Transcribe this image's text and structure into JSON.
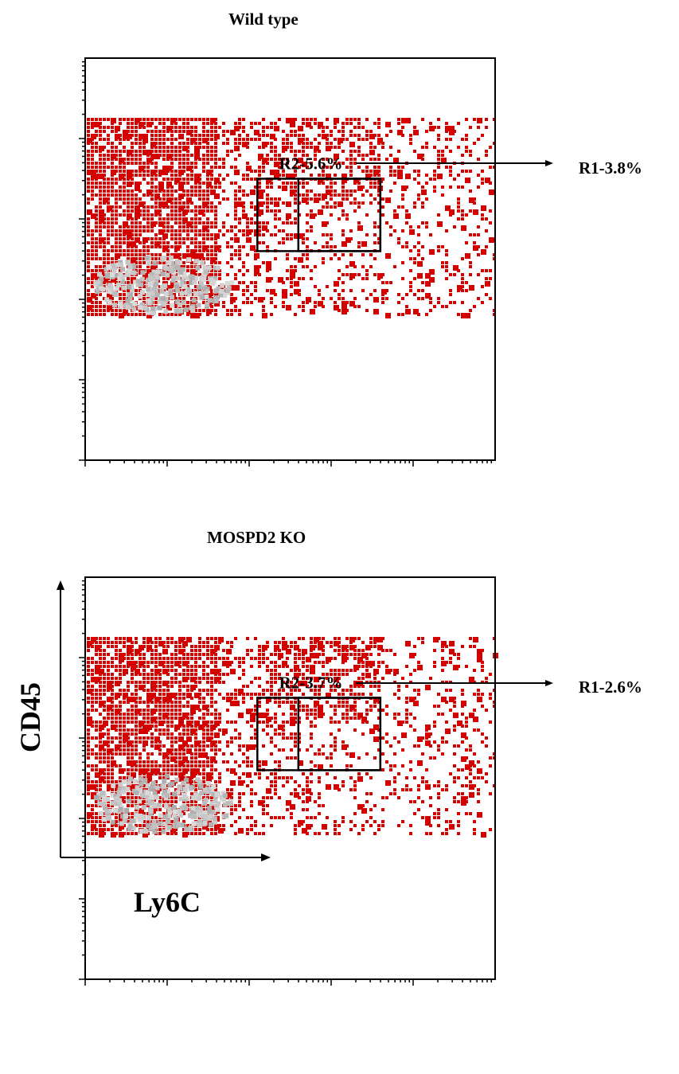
{
  "chart_data": [
    {
      "type": "scatter",
      "title": "Wild type",
      "xlabel": "Ly6C",
      "ylabel": "CD45",
      "x_scale": "log",
      "y_scale": "log",
      "x_decades": [
        0,
        5
      ],
      "y_decades": [
        0,
        5
      ],
      "grid": false,
      "gates": [
        {
          "name": "R2",
          "percent": "R2-5.6%",
          "x_decade_range": [
            2.1,
            3.6
          ],
          "y_decade_range": [
            2.6,
            3.5
          ]
        },
        {
          "name": "R1",
          "percent": "R1-3.8%",
          "x_decade_range": [
            2.6,
            3.6
          ],
          "y_decade_range": [
            2.6,
            3.5
          ]
        }
      ]
    },
    {
      "type": "scatter",
      "title": "MOSPD2 KO",
      "xlabel": "Ly6C",
      "ylabel": "CD45",
      "x_scale": "log",
      "y_scale": "log",
      "x_decades": [
        0,
        5
      ],
      "y_decades": [
        0,
        5
      ],
      "grid": false,
      "gates": [
        {
          "name": "R2",
          "percent": "R2-3.7%",
          "x_decade_range": [
            2.1,
            3.6
          ],
          "y_decade_range": [
            2.6,
            3.5
          ]
        },
        {
          "name": "R1",
          "percent": "R1-2.6%",
          "x_decade_range": [
            2.6,
            3.6
          ],
          "y_decade_range": [
            2.6,
            3.5
          ]
        }
      ]
    }
  ],
  "axis_titles": {
    "y": "CD45",
    "x": "Ly6C"
  },
  "colors": {
    "events": "#d40000",
    "dense": "#b3b3b3",
    "frame": "#000000"
  }
}
